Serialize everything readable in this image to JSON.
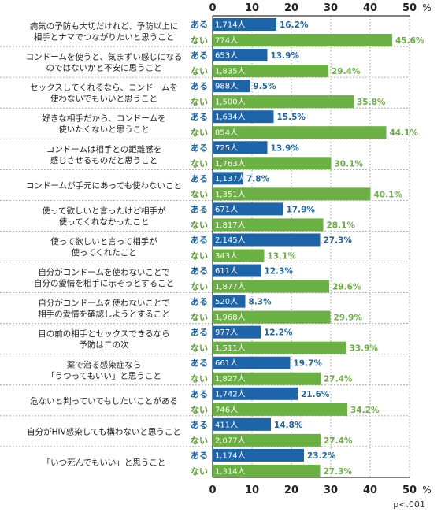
{
  "chart_data": {
    "type": "bar",
    "orientation": "horizontal",
    "xlim": [
      0,
      50
    ],
    "xticks": [
      0,
      10,
      20,
      30,
      40,
      50
    ],
    "unit_label": "%",
    "colors": {
      "aru": "#1e64a8",
      "nai": "#6ab043"
    },
    "series": [
      {
        "name": "ある",
        "values": [
          16.2,
          13.9,
          9.5,
          15.5,
          13.9,
          7.8,
          17.9,
          27.3,
          12.3,
          8.3,
          12.2,
          19.7,
          21.6,
          14.8,
          23.2
        ],
        "counts": [
          "1,714人",
          "653人",
          "988人",
          "1,634人",
          "725人",
          "1,137人",
          "671人",
          "2,145人",
          "611人",
          "520人",
          "977人",
          "661人",
          "1,742人",
          "411人",
          "1,174人"
        ]
      },
      {
        "name": "ない",
        "values": [
          45.6,
          29.4,
          35.8,
          44.1,
          30.1,
          40.1,
          28.1,
          13.1,
          29.6,
          29.9,
          33.9,
          27.4,
          34.2,
          27.4,
          27.3
        ],
        "counts": [
          "774人",
          "1,835人",
          "1,500人",
          "854人",
          "1,763人",
          "1,351人",
          "1,817人",
          "343人",
          "1,877人",
          "1,968人",
          "1,511人",
          "1,827人",
          "746人",
          "2,077人",
          "1,314人"
        ]
      }
    ],
    "categories": [
      [
        "病気の予防も大切だけれど、予防以上に",
        "相手とナマでつながりたいと思うこと"
      ],
      [
        "コンドームを使うと、気まずい感じになる",
        "のではないかと不安に思うこと"
      ],
      [
        "セックスしてくれるなら、コンドームを",
        "使わないでもいいと思うこと"
      ],
      [
        "好きな相手だから、コンドームを",
        "使いたくないと思うこと"
      ],
      [
        "コンドームは相手との距離感を",
        "感じさせるものだと思うこと"
      ],
      [
        "コンドームが手元にあっても使わないこと"
      ],
      [
        "使って欲しいと言ったけど相手が",
        "使ってくれなかったこと"
      ],
      [
        "使って欲しいと言って相手が",
        "使ってくれたこと"
      ],
      [
        "自分がコンドームを使わないことで",
        "自分の愛情を相手に示そうとすること"
      ],
      [
        "自分がコンドームを使わないことで",
        "相手の愛情を確認しようとすること"
      ],
      [
        "目の前の相手とセックスできるなら",
        "予防は二の次"
      ],
      [
        "薬で治る感染症なら",
        "「うつってもいい」と思うこと"
      ],
      [
        "危ないと判っていてもしたいことがある"
      ],
      [
        "自分がHIV感染しても構わないと思うこと"
      ],
      [
        "「いつ死んでもいい」と思うこと"
      ]
    ],
    "footnote": "p<.001"
  }
}
